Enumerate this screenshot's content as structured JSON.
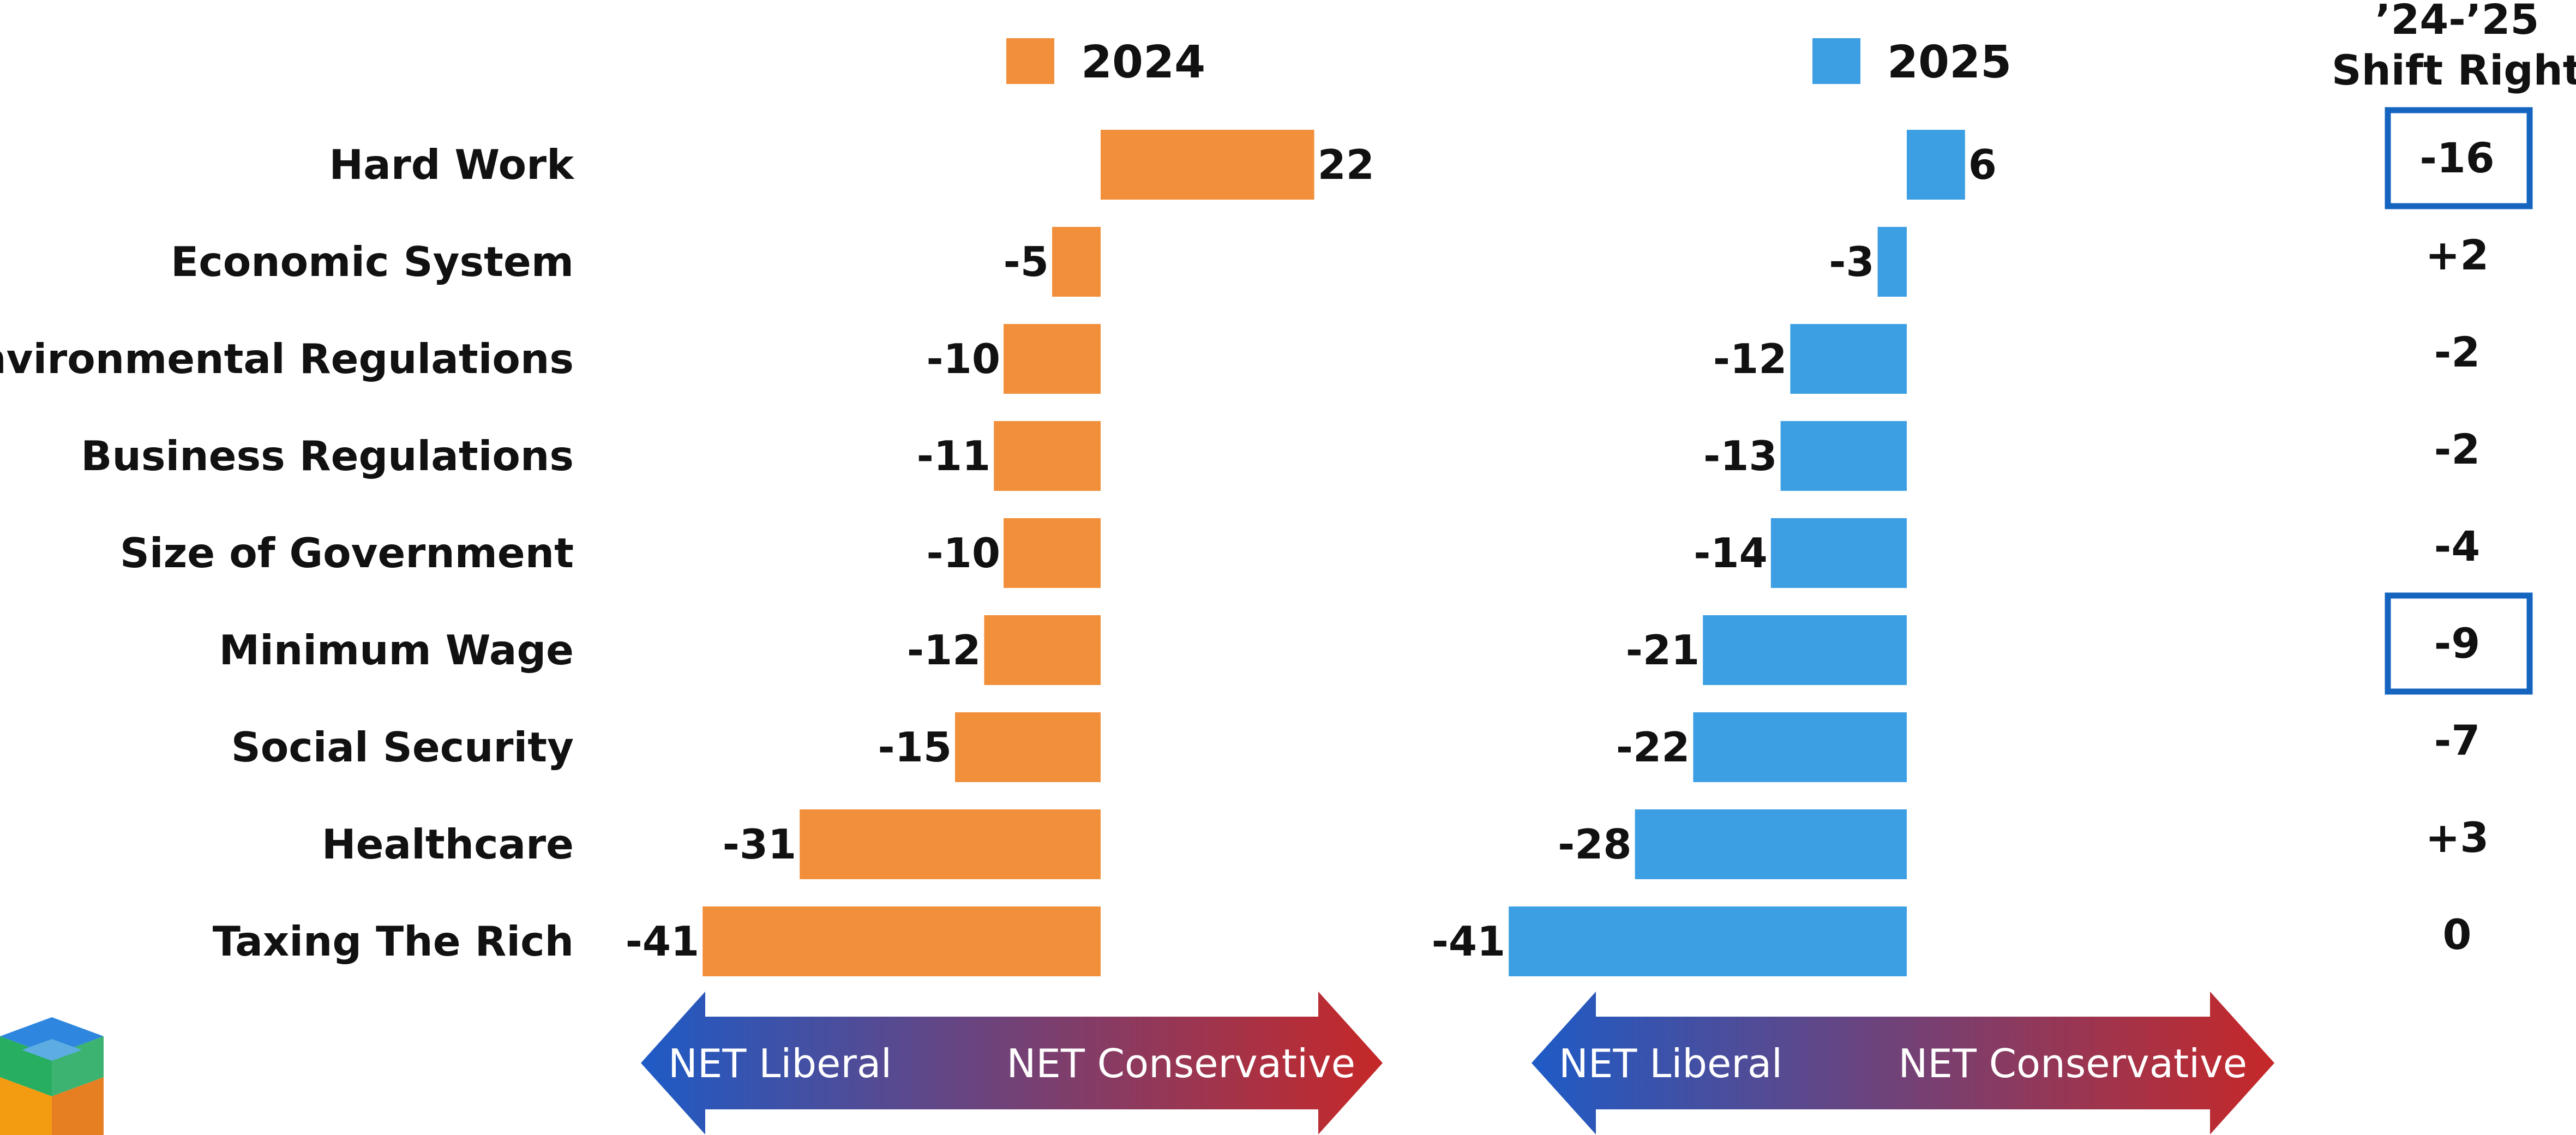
{
  "chart_data": {
    "type": "bar",
    "orientation": "horizontal",
    "categories": [
      "Hard Work",
      "Economic System",
      "Environmental Regulations",
      "Business Regulations",
      "Size of Government",
      "Minimum Wage",
      "Social Security",
      "Healthcare",
      "Taxing The Rich"
    ],
    "series": [
      {
        "name": "2024",
        "color": "#F28F3B",
        "values": [
          22,
          -5,
          -10,
          -11,
          -10,
          -12,
          -15,
          -31,
          -41
        ]
      },
      {
        "name": "2025",
        "color": "#3D9FE3",
        "values": [
          6,
          -3,
          -12,
          -13,
          -14,
          -21,
          -22,
          -28,
          -41
        ]
      }
    ],
    "shift": {
      "header_line1": "’24-’25",
      "header_line2": "Shift Right",
      "values": [
        "-16",
        "+2",
        "-2",
        "-2",
        "-4",
        "-9",
        "-7",
        "+3",
        "0"
      ],
      "highlighted": [
        "Hard Work",
        "Minimum Wage"
      ],
      "highlight_color": "#1565C0"
    },
    "axis_arrow": {
      "left_label": "NET Liberal",
      "right_label": "NET Conservative",
      "left_color": "#1E5BC6",
      "right_color": "#C62828"
    },
    "legend": "top"
  }
}
